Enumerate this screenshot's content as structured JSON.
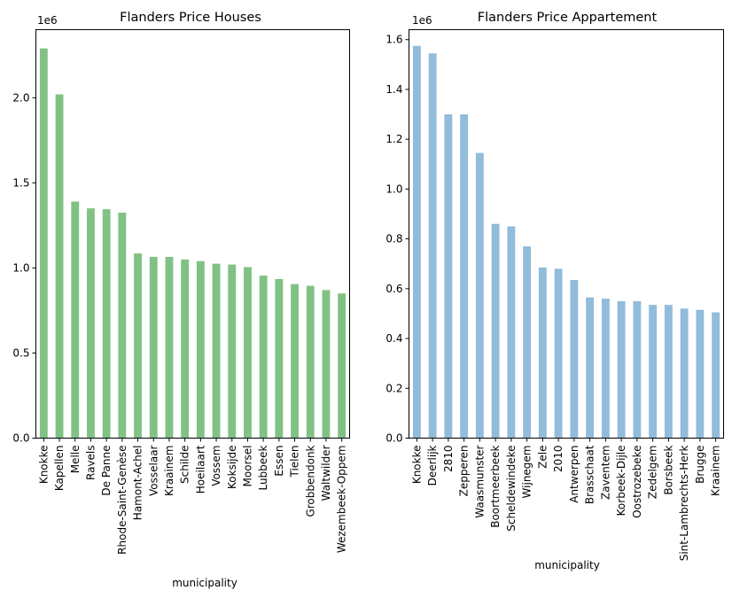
{
  "chart_data": [
    {
      "type": "bar",
      "title": "Flanders  Price Houses",
      "xlabel": "municipality",
      "ylabel": "",
      "scale_label": "1e6",
      "color": "#81c185",
      "ylim": [
        0,
        2.4
      ],
      "yticks": [
        0.0,
        0.5,
        1.0,
        1.5,
        2.0
      ],
      "ytick_labels": [
        "0.0",
        "0.5",
        "1.0",
        "1.5",
        "2.0"
      ],
      "categories": [
        "Knokke",
        "Kapellen",
        "Melle",
        "Ravels",
        "De Panne",
        "Rhode-Saint-Genèse",
        "Hamont-Achel",
        "Vosselaar",
        "Kraainem",
        "Schilde",
        "Hoeilaart",
        "Vossem",
        "Koksijde",
        "Moorsel",
        "Lubbeek",
        "Essen",
        "Tielen",
        "Grobbendonk",
        "Waltwilder",
        "Wezembeek-Oppem"
      ],
      "values": [
        2.29,
        2.02,
        1.39,
        1.35,
        1.345,
        1.325,
        1.085,
        1.065,
        1.065,
        1.05,
        1.04,
        1.025,
        1.02,
        1.005,
        0.955,
        0.935,
        0.905,
        0.895,
        0.87,
        0.85
      ]
    },
    {
      "type": "bar",
      "title": "Flanders Price Appartement",
      "xlabel": "municipality",
      "ylabel": "",
      "scale_label": "1e6",
      "color": "#91bcda",
      "ylim": [
        0,
        1.64
      ],
      "yticks": [
        0.0,
        0.2,
        0.4,
        0.6,
        0.8,
        1.0,
        1.2,
        1.4,
        1.6
      ],
      "ytick_labels": [
        "0.0",
        "0.2",
        "0.4",
        "0.6",
        "0.8",
        "1.0",
        "1.2",
        "1.4",
        "1.6"
      ],
      "categories": [
        "Knokke",
        "Deerlijk",
        "2810",
        "Zepperen",
        "Waasmunster",
        "Boortmeerbeek",
        "Scheldewindeke",
        "Wijnegem",
        "Zele",
        "2010",
        "Antwerpen",
        "Brasschaat",
        "Zaventem",
        "Korbeek-Dijle",
        "Oostrozebeke",
        "Zedelgem",
        "Borsbeek",
        "Sint-Lambrechts-Herk",
        "Brugge",
        "Kraainem"
      ],
      "values": [
        1.575,
        1.545,
        1.3,
        1.3,
        1.145,
        0.86,
        0.85,
        0.77,
        0.685,
        0.68,
        0.635,
        0.565,
        0.56,
        0.55,
        0.55,
        0.535,
        0.535,
        0.52,
        0.515,
        0.505
      ]
    }
  ]
}
